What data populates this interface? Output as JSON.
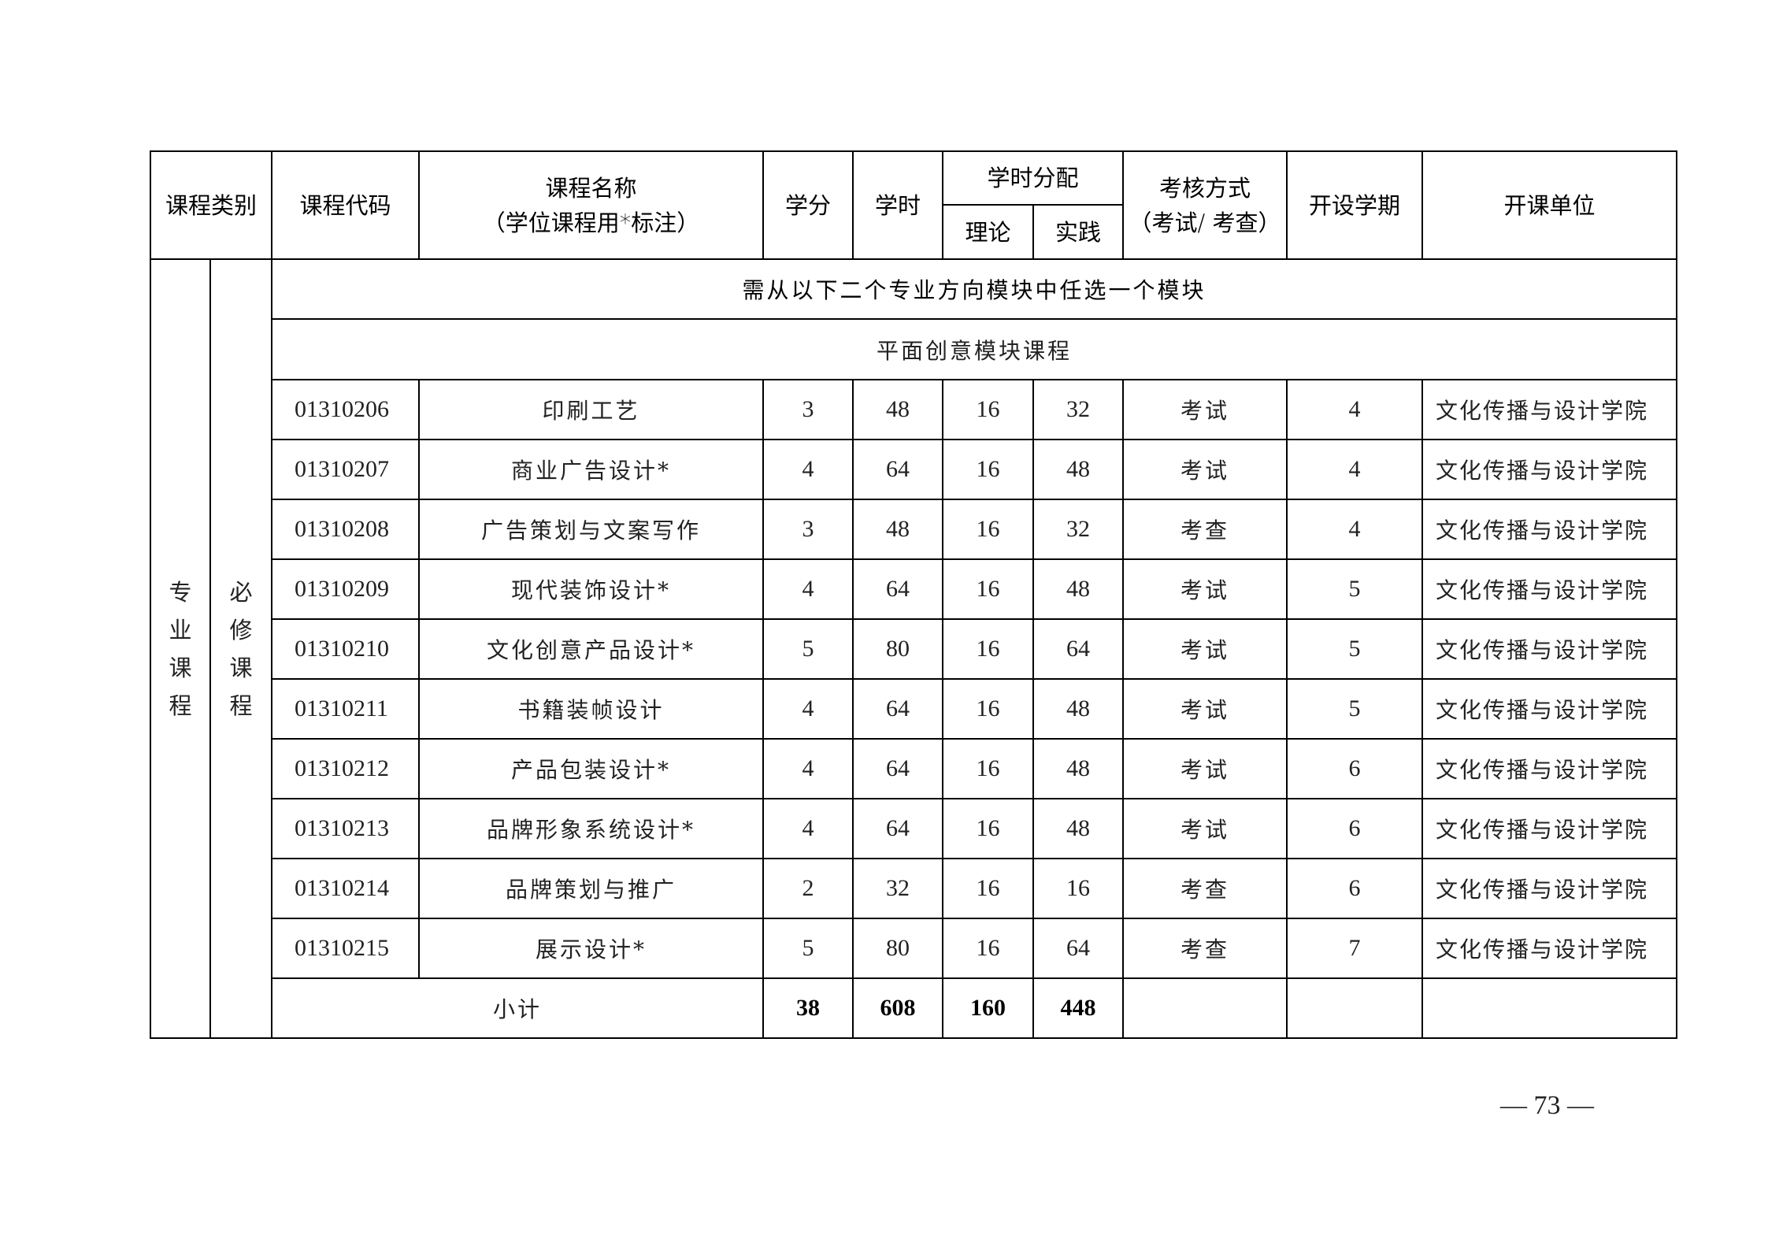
{
  "header": {
    "category": "课程类别",
    "code": "课程代码",
    "name_line1": "课程名称",
    "name_line2": "（学位课程用*标注）",
    "credits": "学分",
    "hours": "学时",
    "hours_split": "学时分配",
    "theory": "理论",
    "practice": "实践",
    "exam_line1": "考核方式",
    "exam_line2": "（考试/ 考查）",
    "semester": "开设学期",
    "unit": "开课单位"
  },
  "category_main": [
    "专",
    "业",
    "课",
    "程"
  ],
  "category_sub": [
    "必",
    "修",
    "课",
    "程"
  ],
  "notice": "需从以下二个专业方向模块中任选一个模块",
  "module_title": "平面创意模块课程",
  "rows": [
    {
      "code": "01310206",
      "name": "印刷工艺",
      "credits": "3",
      "hours": "48",
      "theory": "16",
      "practice": "32",
      "exam": "考试",
      "semester": "4",
      "unit": "文化传播与设计学院"
    },
    {
      "code": "01310207",
      "name": "商业广告设计*",
      "credits": "4",
      "hours": "64",
      "theory": "16",
      "practice": "48",
      "exam": "考试",
      "semester": "4",
      "unit": "文化传播与设计学院"
    },
    {
      "code": "01310208",
      "name": "广告策划与文案写作",
      "credits": "3",
      "hours": "48",
      "theory": "16",
      "practice": "32",
      "exam": "考查",
      "semester": "4",
      "unit": "文化传播与设计学院"
    },
    {
      "code": "01310209",
      "name": "现代装饰设计*",
      "credits": "4",
      "hours": "64",
      "theory": "16",
      "practice": "48",
      "exam": "考试",
      "semester": "5",
      "unit": "文化传播与设计学院"
    },
    {
      "code": "01310210",
      "name": "文化创意产品设计*",
      "credits": "5",
      "hours": "80",
      "theory": "16",
      "practice": "64",
      "exam": "考试",
      "semester": "5",
      "unit": "文化传播与设计学院"
    },
    {
      "code": "01310211",
      "name": "书籍装帧设计",
      "credits": "4",
      "hours": "64",
      "theory": "16",
      "practice": "48",
      "exam": "考试",
      "semester": "5",
      "unit": "文化传播与设计学院"
    },
    {
      "code": "01310212",
      "name": "产品包装设计*",
      "credits": "4",
      "hours": "64",
      "theory": "16",
      "practice": "48",
      "exam": "考试",
      "semester": "6",
      "unit": "文化传播与设计学院"
    },
    {
      "code": "01310213",
      "name": "品牌形象系统设计*",
      "credits": "4",
      "hours": "64",
      "theory": "16",
      "practice": "48",
      "exam": "考试",
      "semester": "6",
      "unit": "文化传播与设计学院"
    },
    {
      "code": "01310214",
      "name": "品牌策划与推广",
      "credits": "2",
      "hours": "32",
      "theory": "16",
      "practice": "16",
      "exam": "考查",
      "semester": "6",
      "unit": "文化传播与设计学院"
    },
    {
      "code": "01310215",
      "name": "展示设计*",
      "credits": "5",
      "hours": "80",
      "theory": "16",
      "practice": "64",
      "exam": "考查",
      "semester": "7",
      "unit": "文化传播与设计学院"
    }
  ],
  "subtotal": {
    "label": "小计",
    "credits": "38",
    "hours": "608",
    "theory": "160",
    "practice": "448"
  },
  "page_number": "— 73 —"
}
